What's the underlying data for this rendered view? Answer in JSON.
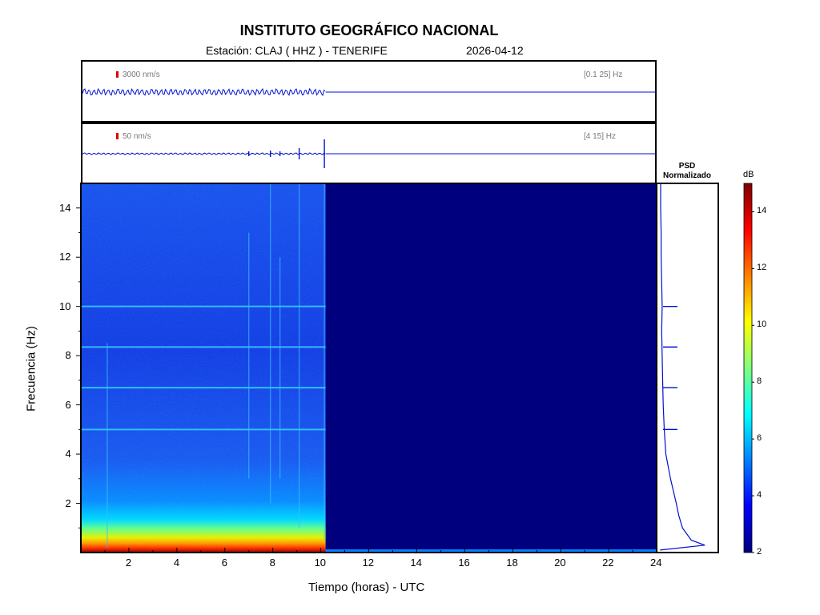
{
  "header": {
    "title": "INSTITUTO GEOGRÁFICO NACIONAL",
    "station": "Estación:  CLAJ ( HHZ ) - TENERIFE",
    "date": "2026-04-12"
  },
  "traces": [
    {
      "scale": "3000 nm/s",
      "band": "[0.1 25] Hz",
      "data_end_hour": 10.2
    },
    {
      "scale": "50 nm/s",
      "band": "[4 15] Hz",
      "data_end_hour": 10.2
    }
  ],
  "psd": {
    "title_line1": "PSD",
    "title_line2": "Normalizado"
  },
  "colorbar": {
    "unit": "dB",
    "min": 2,
    "max": 15,
    "ticks": [
      "2",
      "4",
      "6",
      "8",
      "10",
      "12",
      "14"
    ],
    "colors": [
      "#00007f",
      "#0000ff",
      "#007fff",
      "#00ffff",
      "#7fff7f",
      "#ffff00",
      "#ff7f00",
      "#ff0000",
      "#7f0000"
    ]
  },
  "chart_data": {
    "type": "heatmap",
    "title": "INSTITUTO GEOGRÁFICO NACIONAL",
    "xlabel": "Tiempo (horas) - UTC",
    "ylabel": "Frecuencia  (Hz)",
    "xlim": [
      0,
      24
    ],
    "ylim": [
      0,
      15
    ],
    "xticks": [
      "2",
      "4",
      "6",
      "8",
      "10",
      "12",
      "14",
      "16",
      "18",
      "20",
      "22",
      "24"
    ],
    "yticks": [
      "2",
      "4",
      "6",
      "8",
      "10",
      "12",
      "14"
    ],
    "data_end_hour": 10.2,
    "spectral_lines_hz": [
      5.0,
      6.7,
      8.35,
      10.0
    ],
    "psd_curve": [
      [
        0.1,
        0.02
      ],
      [
        0.3,
        0.88
      ],
      [
        0.5,
        0.62
      ],
      [
        1.0,
        0.45
      ],
      [
        1.5,
        0.38
      ],
      [
        2.0,
        0.33
      ],
      [
        3.0,
        0.22
      ],
      [
        4.0,
        0.13
      ],
      [
        5.0,
        0.1
      ],
      [
        6.0,
        0.08
      ],
      [
        7.0,
        0.07
      ],
      [
        8.0,
        0.06
      ],
      [
        9.0,
        0.05
      ],
      [
        10.0,
        0.06
      ],
      [
        11.0,
        0.05
      ],
      [
        12.0,
        0.04
      ],
      [
        13.0,
        0.04
      ],
      [
        14.0,
        0.03
      ],
      [
        15.0,
        0.03
      ]
    ]
  }
}
